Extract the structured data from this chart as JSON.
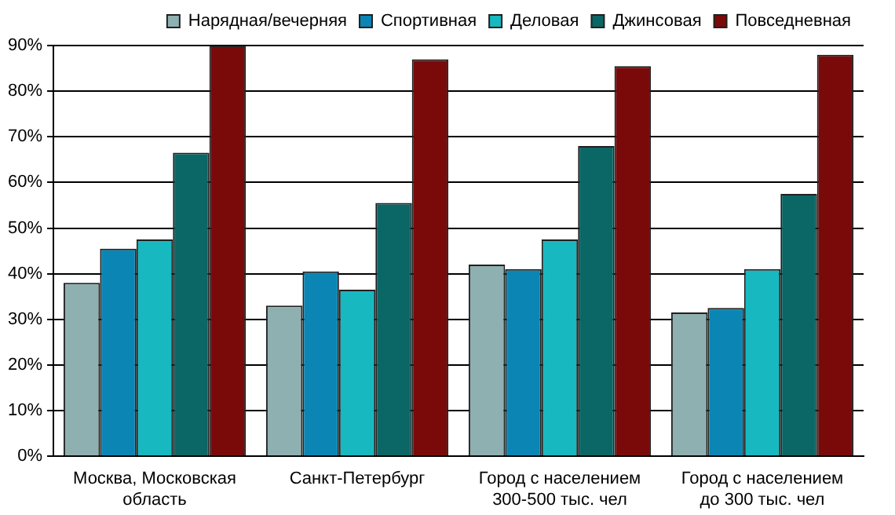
{
  "chart_data": {
    "type": "bar",
    "categories": [
      "Москва, Московская область",
      "Санкт-Петербург",
      "Город с населением 300-500 тыс. чел",
      "Город с населением до 300 тыс. чел"
    ],
    "series": [
      {
        "name": "Нарядная/вечерняя",
        "color": "#8fb0b0",
        "values": [
          38,
          33,
          42,
          31.5
        ]
      },
      {
        "name": "Спортивная",
        "color": "#0b86b4",
        "values": [
          45.5,
          40.5,
          41,
          32.5
        ]
      },
      {
        "name": "Деловая",
        "color": "#18b8c0",
        "values": [
          47.5,
          36.5,
          47.5,
          41
        ]
      },
      {
        "name": "Джинсовая",
        "color": "#0b6666",
        "values": [
          66.5,
          55.5,
          68,
          57.5
        ]
      },
      {
        "name": "Повседневная",
        "color": "#7a0a0a",
        "values": [
          90,
          87,
          85.5,
          88
        ]
      }
    ],
    "ylim": [
      0,
      90
    ],
    "yticks": [
      {
        "value": 0,
        "label": "0%"
      },
      {
        "value": 10,
        "label": "10%"
      },
      {
        "value": 20,
        "label": "20%"
      },
      {
        "value": 30,
        "label": "30%"
      },
      {
        "value": 40,
        "label": "40%"
      },
      {
        "value": 50,
        "label": "50%"
      },
      {
        "value": 60,
        "label": "60%"
      },
      {
        "value": 70,
        "label": "70%"
      },
      {
        "value": 80,
        "label": "80%"
      },
      {
        "value": 90,
        "label": "90%"
      }
    ],
    "grid": "y",
    "legend": "top right"
  }
}
